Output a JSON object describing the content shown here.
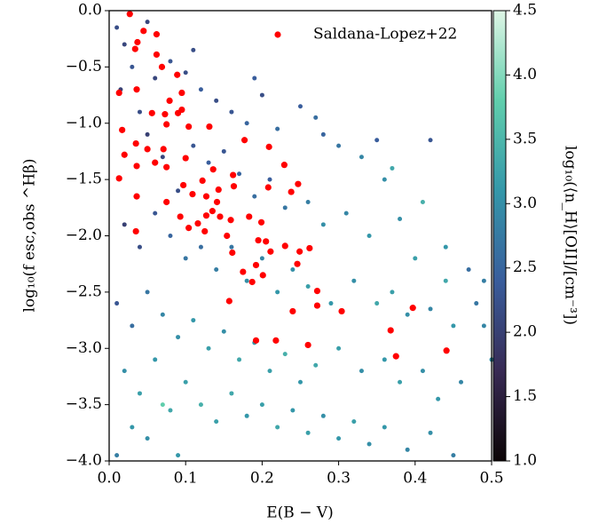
{
  "chart_data": {
    "type": "scatter",
    "xlabel": "E(B − V)",
    "ylabel": "log₁₀(f esc,obs ^Hβ)",
    "xlim": [
      0,
      0.5
    ],
    "ylim": [
      -4,
      0
    ],
    "xticks": [
      {
        "value": 0,
        "label": "0.0"
      },
      0.1,
      0.2,
      0.3,
      0.4,
      0.5
    ],
    "yticks": [
      {
        "value": 0,
        "label": "0.0"
      },
      {
        "value": -0.5,
        "label": "−0.5"
      },
      {
        "value": -1,
        "label": "−1.0"
      },
      {
        "value": -1.5,
        "label": "−1.5"
      },
      {
        "value": -2,
        "label": "−2.0"
      },
      {
        "value": -2.5,
        "label": "−2.5"
      },
      {
        "value": -3,
        "label": "−3.0"
      },
      {
        "value": -3.5,
        "label": "−3.5"
      },
      {
        "value": -4,
        "label": "−4.0"
      }
    ],
    "legend": "upper right",
    "colorbar": {
      "label": "log₁₀(⟨n_H⟩[OII]/[cm⁻³])",
      "clim": [
        1,
        4.5
      ],
      "ticks": [
        {
          "value": 1,
          "label": "1.0"
        },
        {
          "value": 1.5,
          "label": "1.5"
        },
        {
          "value": 2,
          "label": "2.0"
        },
        {
          "value": 2.5,
          "label": "2.5"
        },
        {
          "value": 3,
          "label": "3.0"
        },
        {
          "value": 3.5,
          "label": "3.5"
        },
        {
          "value": 4,
          "label": "4.0"
        },
        {
          "value": 4.5,
          "label": "4.5"
        }
      ],
      "colormap": [
        "#0b0405",
        "#382a54",
        "#395d9c",
        "#3497a9",
        "#60ceac",
        "#def5e5"
      ]
    },
    "series": [
      {
        "x": [
          0.01,
          0.02,
          0.03,
          0.015,
          0.04,
          0.06,
          0.08,
          0.1,
          0.12,
          0.14,
          0.16,
          0.18,
          0.2,
          0.22,
          0.25,
          0.28,
          0.3,
          0.33,
          0.36,
          0.42,
          0.05,
          0.07,
          0.09,
          0.11,
          0.13,
          0.15,
          0.17,
          0.19,
          0.21,
          0.23,
          0.26,
          0.28,
          0.31,
          0.34,
          0.38,
          0.4,
          0.44,
          0.47,
          0.49,
          0.02,
          0.04,
          0.06,
          0.08,
          0.1,
          0.12,
          0.14,
          0.16,
          0.18,
          0.2,
          0.22,
          0.24,
          0.26,
          0.29,
          0.32,
          0.35,
          0.37,
          0.39,
          0.42,
          0.45,
          0.48,
          0.01,
          0.03,
          0.05,
          0.07,
          0.09,
          0.11,
          0.13,
          0.15,
          0.17,
          0.19,
          0.21,
          0.23,
          0.25,
          0.27,
          0.3,
          0.33,
          0.36,
          0.38,
          0.41,
          0.43,
          0.46,
          0.02,
          0.04,
          0.06,
          0.08,
          0.1,
          0.12,
          0.14,
          0.16,
          0.18,
          0.2,
          0.22,
          0.24,
          0.26,
          0.28,
          0.3,
          0.32,
          0.34,
          0.36,
          0.39,
          0.42,
          0.45,
          0.05,
          0.07,
          0.09,
          0.01,
          0.03,
          0.35,
          0.37,
          0.41,
          0.49,
          0.5,
          0.44,
          0.27,
          0.19,
          0.11,
          0.05
        ],
        "values": [
          -0.15,
          -0.3,
          -0.5,
          -0.7,
          -0.9,
          -0.6,
          -0.45,
          -0.55,
          -0.7,
          -0.8,
          -0.9,
          -1.0,
          -0.75,
          -1.05,
          -0.85,
          -1.1,
          -1.2,
          -1.3,
          -1.5,
          -1.15,
          -1.1,
          -1.3,
          -1.6,
          -1.2,
          -1.35,
          -1.25,
          -1.45,
          -1.65,
          -1.5,
          -1.75,
          -1.7,
          -1.9,
          -1.8,
          -2.0,
          -1.85,
          -2.2,
          -2.1,
          -2.3,
          -2.4,
          -1.9,
          -2.1,
          -1.8,
          -2.0,
          -2.2,
          -2.1,
          -2.3,
          -2.1,
          -2.4,
          -2.2,
          -2.5,
          -2.3,
          -2.45,
          -2.6,
          -2.4,
          -2.6,
          -2.5,
          -2.7,
          -2.65,
          -2.8,
          -2.6,
          -2.6,
          -2.8,
          -2.5,
          -2.7,
          -2.9,
          -2.75,
          -3.0,
          -2.85,
          -3.1,
          -2.95,
          -3.2,
          -3.05,
          -3.3,
          -3.15,
          -3.0,
          -3.2,
          -3.1,
          -3.3,
          -3.2,
          -3.45,
          -3.3,
          -3.2,
          -3.4,
          -3.1,
          -3.55,
          -3.3,
          -3.5,
          -3.65,
          -3.4,
          -3.6,
          -3.5,
          -3.7,
          -3.55,
          -3.75,
          -3.6,
          -3.8,
          -3.65,
          -3.85,
          -3.7,
          -3.9,
          -3.75,
          -3.95,
          -3.8,
          -3.5,
          -3.95,
          -3.95,
          -3.7,
          -1.15,
          -1.4,
          -1.7,
          -2.8,
          -3.1,
          -2.4,
          -0.95,
          -0.6,
          -0.35,
          -0.1
        ],
        "c": [
          2.2,
          2.1,
          2.3,
          2.0,
          2.2,
          2.1,
          2.3,
          2.2,
          2.4,
          2.2,
          2.3,
          2.5,
          2.2,
          2.6,
          2.4,
          2.5,
          2.7,
          2.9,
          3.0,
          2.3,
          2.0,
          2.1,
          2.2,
          2.3,
          2.4,
          2.3,
          2.5,
          2.6,
          2.4,
          2.7,
          2.8,
          3.0,
          2.9,
          3.1,
          3.0,
          3.2,
          3.1,
          2.6,
          2.8,
          2.0,
          2.2,
          2.3,
          2.5,
          2.7,
          2.6,
          2.8,
          2.7,
          3.0,
          2.9,
          3.1,
          3.0,
          3.2,
          3.1,
          3.0,
          3.3,
          3.2,
          3.0,
          2.9,
          3.1,
          2.7,
          2.3,
          2.6,
          2.7,
          2.9,
          3.0,
          3.1,
          3.2,
          3.0,
          3.3,
          3.1,
          3.2,
          3.4,
          3.1,
          3.3,
          3.2,
          3.0,
          3.1,
          3.2,
          3.0,
          3.1,
          2.9,
          3.0,
          3.2,
          3.1,
          3.3,
          3.2,
          3.4,
          3.2,
          3.3,
          3.1,
          3.2,
          3.3,
          3.1,
          3.2,
          3.0,
          3.1,
          3.2,
          3.0,
          3.1,
          2.9,
          3.0,
          2.8,
          3.0,
          3.8,
          3.1,
          2.8,
          3.1,
          2.4,
          3.3,
          3.4,
          2.9,
          3.0,
          3.3,
          2.6,
          2.4,
          2.2,
          2.1
        ]
      },
      {
        "name": "Saldana-Lopez+22",
        "color": "#ff0000",
        "x": [
          0.027,
          0.045,
          0.062,
          0.037,
          0.034,
          0.062,
          0.069,
          0.089,
          0.013,
          0.036,
          0.095,
          0.079,
          0.056,
          0.095,
          0.073,
          0.09,
          0.104,
          0.131,
          0.017,
          0.075,
          0.177,
          0.209,
          0.035,
          0.05,
          0.02,
          0.071,
          0.1,
          0.036,
          0.06,
          0.075,
          0.229,
          0.136,
          0.162,
          0.013,
          0.122,
          0.247,
          0.097,
          0.163,
          0.208,
          0.238,
          0.036,
          0.143,
          0.127,
          0.109,
          0.075,
          0.141,
          0.135,
          0.145,
          0.183,
          0.093,
          0.127,
          0.116,
          0.199,
          0.104,
          0.159,
          0.035,
          0.125,
          0.154,
          0.195,
          0.205,
          0.23,
          0.262,
          0.161,
          0.211,
          0.249,
          0.246,
          0.192,
          0.175,
          0.201,
          0.187,
          0.272,
          0.157,
          0.272,
          0.304,
          0.24,
          0.397,
          0.368,
          0.192,
          0.218,
          0.26,
          0.441,
          0.375
        ],
        "values": [
          -0.03,
          -0.18,
          -0.21,
          -0.28,
          -0.34,
          -0.39,
          -0.5,
          -0.57,
          -0.73,
          -0.7,
          -0.73,
          -0.8,
          -0.91,
          -0.88,
          -0.92,
          -0.91,
          -1.03,
          -1.03,
          -1.06,
          -1.01,
          -1.15,
          -1.21,
          -1.18,
          -1.23,
          -1.28,
          -1.23,
          -1.31,
          -1.38,
          -1.35,
          -1.39,
          -1.37,
          -1.41,
          -1.46,
          -1.49,
          -1.51,
          -1.54,
          -1.55,
          -1.56,
          -1.57,
          -1.61,
          -1.65,
          -1.59,
          -1.65,
          -1.63,
          -1.7,
          -1.7,
          -1.78,
          -1.83,
          -1.83,
          -1.83,
          -1.82,
          -1.89,
          -1.88,
          -1.93,
          -1.86,
          -1.96,
          -1.96,
          -2.0,
          -2.04,
          -2.05,
          -2.09,
          -2.11,
          -2.15,
          -2.14,
          -2.14,
          -2.25,
          -2.26,
          -2.32,
          -2.35,
          -2.41,
          -2.49,
          -2.58,
          -2.62,
          -2.67,
          -2.67,
          -2.64,
          -2.84,
          -2.93,
          -2.93,
          -2.97,
          -3.02,
          -3.07
        ]
      }
    ]
  }
}
